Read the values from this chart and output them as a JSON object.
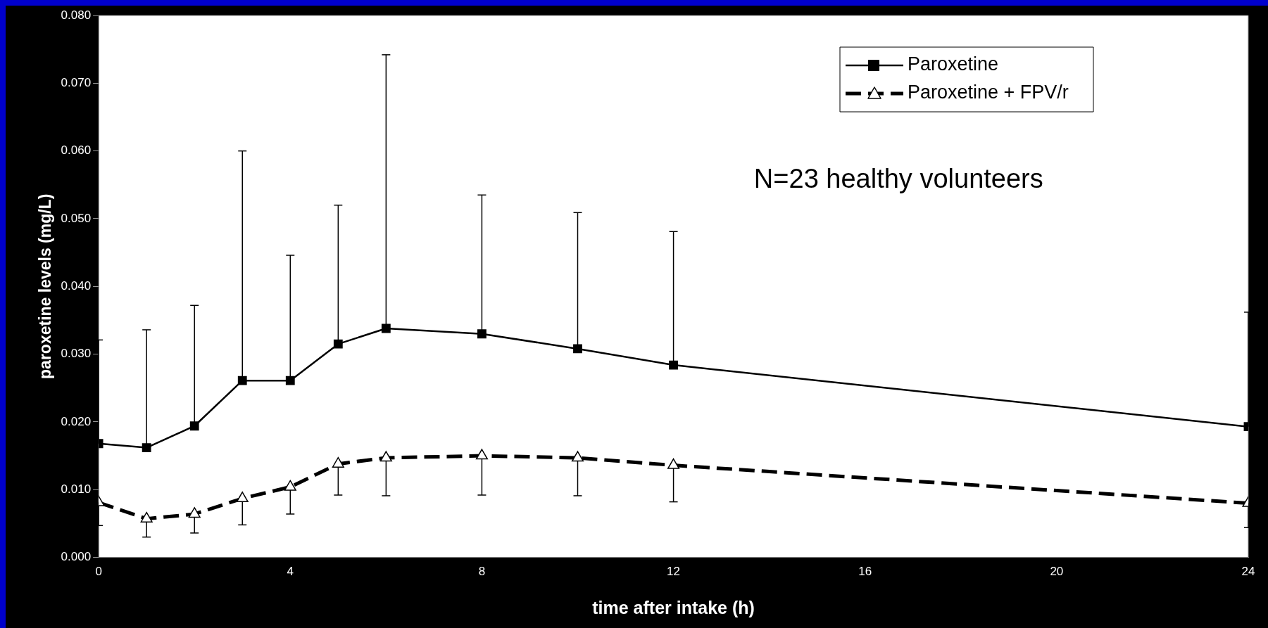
{
  "chart_data": {
    "type": "line",
    "xlabel": "time after intake (h)",
    "ylabel": "paroxetine levels (mg/L)",
    "xlim": [
      0,
      24
    ],
    "xticks": [
      0,
      4,
      8,
      12,
      16,
      20,
      24
    ],
    "ylim": [
      0,
      0.08
    ],
    "yticks": [
      {
        "value": 0,
        "label": "0.000"
      },
      {
        "value": 0.01,
        "label": "0.010"
      },
      {
        "value": 0.02,
        "label": "0.020"
      },
      {
        "value": 0.03,
        "label": "0.030"
      },
      {
        "value": 0.04,
        "label": "0.040"
      },
      {
        "value": 0.05,
        "label": "0.050"
      },
      {
        "value": 0.06,
        "label": "0.060"
      },
      {
        "value": 0.07,
        "label": "0.070"
      },
      {
        "value": 0.08,
        "label": "0.080"
      }
    ],
    "grid": false,
    "legend": "top right",
    "annotations": [
      "N=23 healthy volunteers"
    ],
    "series": [
      {
        "name": "Paroxetine",
        "color": "#000000",
        "marker": "square",
        "line_style": "solid",
        "x": [
          0,
          1,
          2,
          3,
          4,
          5,
          6,
          8,
          10,
          12,
          24
        ],
        "values": [
          0.0168,
          0.0162,
          0.0194,
          0.0261,
          0.0261,
          0.0315,
          0.0338,
          0.033,
          0.0308,
          0.0284,
          0.0193
        ],
        "errors": [
          [
            0.0168,
            0.0321
          ],
          [
            0.0162,
            0.0336
          ],
          [
            0.0194,
            0.0372
          ],
          [
            0.0261,
            0.06
          ],
          [
            0.0261,
            0.0446
          ],
          [
            0.0315,
            0.052
          ],
          [
            0.0338,
            0.0742
          ],
          [
            0.033,
            0.0535
          ],
          [
            0.0308,
            0.0509
          ],
          [
            0.0284,
            0.0481
          ],
          [
            0.0193,
            0.0362
          ]
        ]
      },
      {
        "name": "Paroxetine + FPV/r",
        "color": "#000000",
        "marker": "triangle",
        "line_style": "dashed",
        "x": [
          0,
          1,
          2,
          3,
          4,
          5,
          6,
          8,
          10,
          12,
          24
        ],
        "values": [
          0.0081,
          0.0057,
          0.0064,
          0.0087,
          0.0104,
          0.0138,
          0.0147,
          0.015,
          0.0147,
          0.0136,
          0.008
        ],
        "errors": [
          [
            0.0047,
            0.0081
          ],
          [
            0.003,
            0.0057
          ],
          [
            0.0036,
            0.0064
          ],
          [
            0.0048,
            0.0087
          ],
          [
            0.0064,
            0.0104
          ],
          [
            0.0092,
            0.0138
          ],
          [
            0.0091,
            0.0147
          ],
          [
            0.0092,
            0.015
          ],
          [
            0.0091,
            0.0147
          ],
          [
            0.0082,
            0.0136
          ],
          [
            0.0044,
            0.008
          ]
        ]
      }
    ]
  }
}
